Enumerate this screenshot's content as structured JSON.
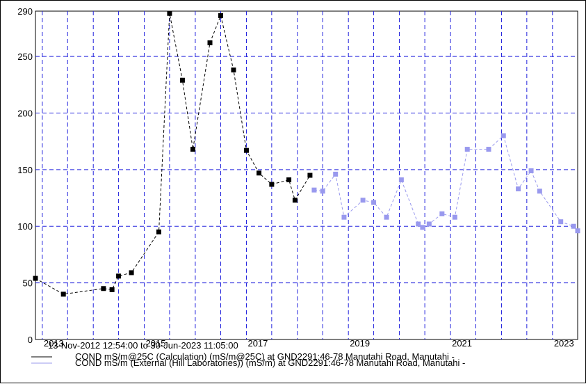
{
  "chart_data": {
    "type": "line",
    "time_range": "13-Nov-2012 12:54:00 to 30-Jun-2023 11:05:00",
    "x_tick_labels": [
      "2013",
      "2015",
      "2017",
      "2019",
      "2021",
      "2023"
    ],
    "y_tick_labels": [
      "0",
      "50",
      "100",
      "150",
      "200",
      "250",
      "290"
    ],
    "xlim": [
      "2012-11-13",
      "2023-06-30"
    ],
    "ylim": [
      0,
      290
    ],
    "grid": true,
    "legend_placement": "bottom",
    "series": [
      {
        "name": "COND mS/m@25C (Calculation) (mS/m@25C) at GND2291:46-78 Manutahi Road, Manutahi -",
        "color": "#000000",
        "x": [
          "2012-11-13",
          "2013-06-01",
          "2014-03-15",
          "2014-05-15",
          "2014-07-01",
          "2014-10-01",
          "2015-04-15",
          "2015-07-01",
          "2015-10-01",
          "2015-12-15",
          "2016-04-15",
          "2016-07-01",
          "2016-10-01",
          "2017-01-01",
          "2017-04-01",
          "2017-07-01",
          "2017-11-01",
          "2017-12-15",
          "2018-04-01"
        ],
        "values": [
          54,
          40,
          45,
          44,
          56,
          59,
          95,
          288,
          229,
          168,
          262,
          286,
          238,
          167,
          147,
          137,
          141,
          123,
          145
        ]
      },
      {
        "name": "COND mS/m (External (Hill Laboratories)) (mS/m) at GND2291:46-78 Manutahi Road, Manutahi -",
        "color": "#9999ee",
        "x": [
          "2018-05-01",
          "2018-07-01",
          "2018-10-01",
          "2018-12-01",
          "2019-04-15",
          "2019-07-01",
          "2019-10-01",
          "2020-01-15",
          "2020-05-15",
          "2020-06-15",
          "2020-08-01",
          "2020-11-01",
          "2021-02-01",
          "2021-05-01",
          "2021-10-01",
          "2022-01-15",
          "2022-05-01",
          "2022-08-01",
          "2022-10-01",
          "2023-03-01",
          "2023-06-01",
          "2023-06-30"
        ],
        "values": [
          132,
          131,
          146,
          108,
          123,
          121,
          108,
          141,
          102,
          99,
          102,
          111,
          108,
          168,
          168,
          180,
          133,
          149,
          131,
          104,
          100,
          96
        ]
      }
    ]
  }
}
